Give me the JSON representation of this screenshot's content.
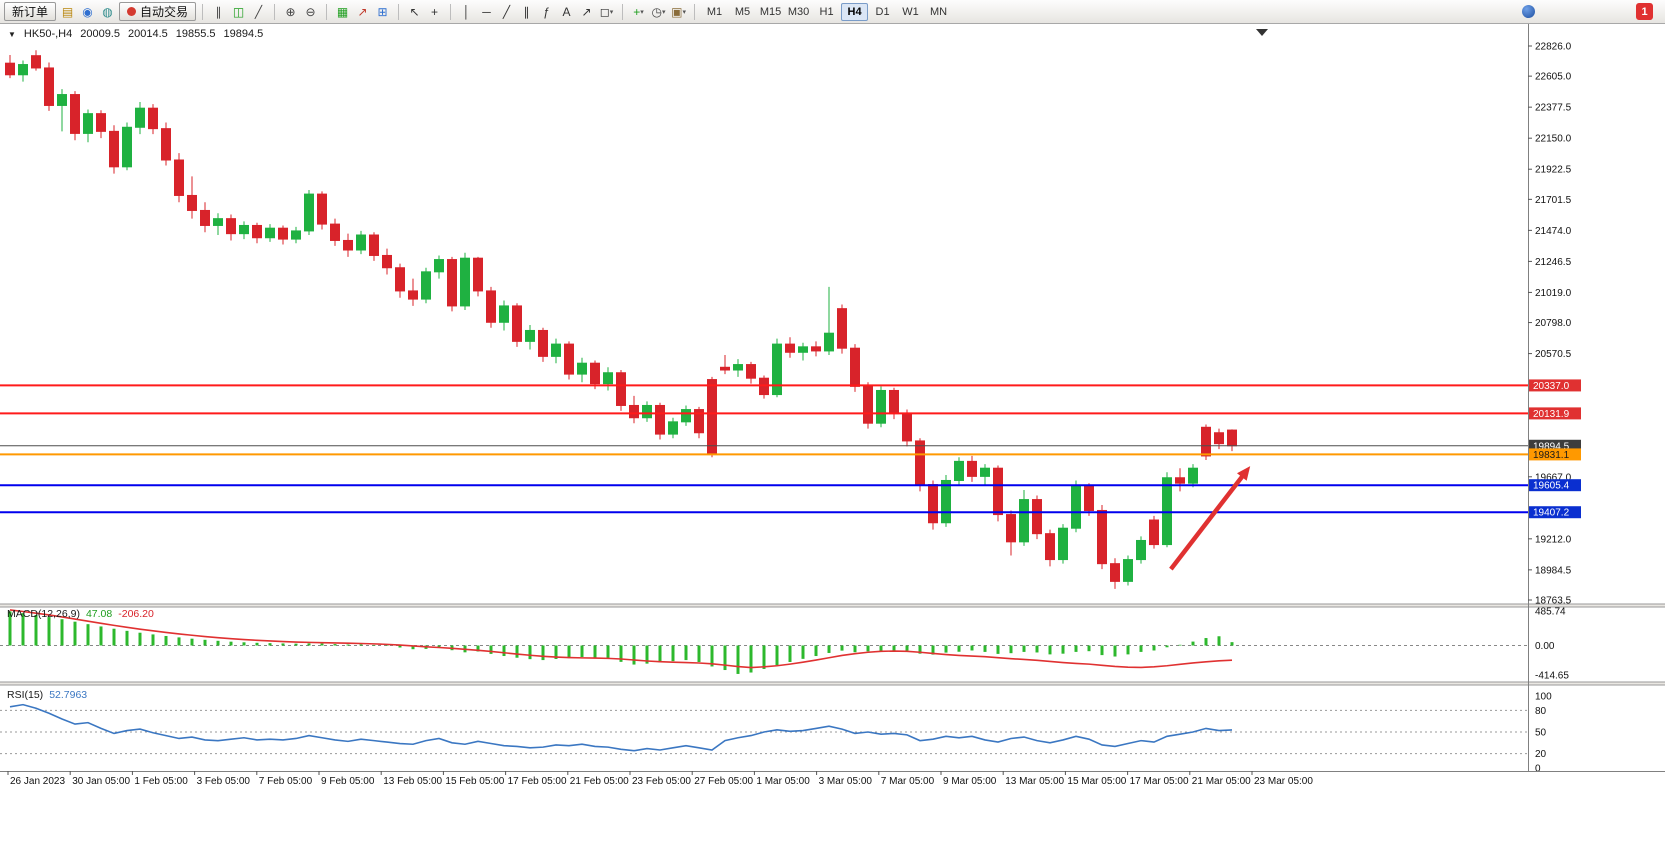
{
  "toolbar": {
    "buttons": [
      {
        "name": "new-order",
        "label": "新订单"
      },
      {
        "name": "auto-trading",
        "label": "自动交易"
      }
    ],
    "timeframes": [
      "M1",
      "M5",
      "M15",
      "M30",
      "H1",
      "H4",
      "D1",
      "W1",
      "MN"
    ],
    "active_timeframe": "H4",
    "notification_count": "1",
    "icon_groups": {
      "g1": [
        {
          "name": "market-watch-icon",
          "glyph": "▤",
          "color": "#b8860b"
        },
        {
          "name": "profile-icon",
          "glyph": "◉",
          "color": "#2f6fd0"
        },
        {
          "name": "community-icon",
          "glyph": "◍",
          "color": "#2e8b8b"
        }
      ],
      "chart_types": [
        {
          "name": "bar-chart-icon",
          "glyph": "∥",
          "color": "#444444"
        },
        {
          "name": "candle-chart-icon",
          "glyph": "◫",
          "color": "#1e9e1e"
        },
        {
          "name": "line-chart-icon",
          "glyph": "╱",
          "color": "#444444"
        }
      ],
      "zoom": [
        {
          "name": "zoom-in-icon",
          "glyph": "⊕",
          "color": "#444444"
        },
        {
          "name": "zoom-out-icon",
          "glyph": "⊖",
          "color": "#444444"
        }
      ],
      "windows": [
        {
          "name": "grid-icon",
          "glyph": "▦",
          "color": "#1e9e1e"
        },
        {
          "name": "indicators-window-icon",
          "glyph": "↗",
          "color": "#c0392b"
        },
        {
          "name": "tile-windows-icon",
          "glyph": "⊞",
          "color": "#2f6fd0"
        }
      ],
      "cursor": [
        {
          "name": "cursor-icon",
          "glyph": "↖",
          "color": "#333333"
        },
        {
          "name": "crosshair-icon",
          "glyph": "+",
          "color": "#333333"
        }
      ],
      "draw": [
        {
          "name": "vertical-line-icon",
          "glyph": "│",
          "color": "#333333"
        },
        {
          "name": "horizontal-line-icon",
          "glyph": "─",
          "color": "#333333"
        },
        {
          "name": "trendline-icon",
          "glyph": "╱",
          "color": "#333333"
        },
        {
          "name": "channel-icon",
          "glyph": "∥",
          "color": "#333333"
        },
        {
          "name": "fibonacci-icon",
          "glyph": "ƒ",
          "color": "#333333"
        },
        {
          "name": "text-icon",
          "glyph": "A",
          "color": "#333333"
        },
        {
          "name": "arrows-icon",
          "glyph": "↗",
          "color": "#333333"
        },
        {
          "name": "shapes-icon",
          "glyph": "◻",
          "color": "#333333",
          "caret": true
        }
      ],
      "insert": [
        {
          "name": "add-indicator-icon",
          "glyph": "+",
          "color": "#1e9e1e",
          "caret": true
        },
        {
          "name": "period-icon",
          "glyph": "◷",
          "color": "#444444",
          "caret": true
        },
        {
          "name": "template-icon",
          "glyph": "▣",
          "color": "#8a6d3b",
          "caret": true
        }
      ]
    }
  },
  "chart": {
    "header": {
      "symbol": "HK50-,H4",
      "open": "20009.5",
      "high": "20014.5",
      "low": "19855.5",
      "close": "19894.5"
    },
    "macd_label": {
      "name": "MACD(12,26,9)",
      "main": "47.08",
      "signal": "-206.20"
    },
    "rsi_label": {
      "name": "RSI(15)",
      "value": "52.7963"
    }
  },
  "chart_data": {
    "type": "candlestick",
    "symbol": "HK50-",
    "timeframe": "H4",
    "ylim": [
      18763.5,
      22826.0
    ],
    "price_ticks": [
      22826.0,
      22605.0,
      22377.5,
      22150.0,
      21922.5,
      21701.5,
      21474.0,
      21246.5,
      21019.0,
      20798.0,
      20570.5,
      19667.0,
      19212.0,
      18984.5,
      18763.5
    ],
    "hlines": [
      {
        "price": 20337.0,
        "color": "#ff1a1a",
        "width": 2,
        "box": "#e03131",
        "text": "#ffffff"
      },
      {
        "price": 20131.9,
        "color": "#ff1a1a",
        "width": 2,
        "box": "#e03131",
        "text": "#ffffff"
      },
      {
        "price": 19894.5,
        "color": "#4d4d4d",
        "width": 1,
        "box": "#3d3d3d",
        "text": "#ffffff"
      },
      {
        "price": 19831.1,
        "color": "#ff9900",
        "width": 2,
        "box": "#ff9900",
        "text": "#1a1a1a"
      },
      {
        "price": 19605.4,
        "color": "#0000ee",
        "width": 2,
        "box": "#0a2fd0",
        "text": "#ffffff"
      },
      {
        "price": 19407.2,
        "color": "#0000ee",
        "width": 2,
        "box": "#0a2fd0",
        "text": "#ffffff"
      }
    ],
    "candles": [
      [
        22700,
        22760,
        22590,
        22615
      ],
      [
        22615,
        22720,
        22565,
        22690
      ],
      [
        22755,
        22795,
        22645,
        22665
      ],
      [
        22665,
        22705,
        22350,
        22390
      ],
      [
        22390,
        22510,
        22200,
        22470
      ],
      [
        22470,
        22495,
        22135,
        22185
      ],
      [
        22185,
        22360,
        22120,
        22330
      ],
      [
        22330,
        22355,
        22150,
        22200
      ],
      [
        22200,
        22245,
        21890,
        21940
      ],
      [
        21940,
        22265,
        21915,
        22230
      ],
      [
        22230,
        22415,
        22180,
        22370
      ],
      [
        22370,
        22400,
        22180,
        22220
      ],
      [
        22220,
        22265,
        21950,
        21990
      ],
      [
        21990,
        22040,
        21680,
        21730
      ],
      [
        21730,
        21870,
        21560,
        21620
      ],
      [
        21620,
        21680,
        21460,
        21510
      ],
      [
        21510,
        21600,
        21440,
        21560
      ],
      [
        21560,
        21590,
        21400,
        21450
      ],
      [
        21450,
        21540,
        21410,
        21510
      ],
      [
        21510,
        21530,
        21380,
        21420
      ],
      [
        21420,
        21520,
        21390,
        21490
      ],
      [
        21490,
        21510,
        21370,
        21410
      ],
      [
        21410,
        21500,
        21380,
        21470
      ],
      [
        21470,
        21770,
        21440,
        21740
      ],
      [
        21740,
        21760,
        21480,
        21520
      ],
      [
        21520,
        21560,
        21360,
        21400
      ],
      [
        21400,
        21450,
        21280,
        21330
      ],
      [
        21330,
        21470,
        21300,
        21440
      ],
      [
        21440,
        21460,
        21250,
        21290
      ],
      [
        21290,
        21340,
        21150,
        21200
      ],
      [
        21200,
        21230,
        20980,
        21030
      ],
      [
        21030,
        21120,
        20920,
        20970
      ],
      [
        20970,
        21200,
        20940,
        21170
      ],
      [
        21170,
        21290,
        21120,
        21260
      ],
      [
        21260,
        21280,
        20880,
        20920
      ],
      [
        20920,
        21310,
        20890,
        21270
      ],
      [
        21270,
        21280,
        20990,
        21030
      ],
      [
        21030,
        21060,
        20760,
        20800
      ],
      [
        20800,
        20960,
        20740,
        20920
      ],
      [
        20920,
        20940,
        20620,
        20660
      ],
      [
        20660,
        20780,
        20600,
        20740
      ],
      [
        20740,
        20760,
        20510,
        20550
      ],
      [
        20550,
        20680,
        20500,
        20640
      ],
      [
        20640,
        20660,
        20380,
        20420
      ],
      [
        20420,
        20540,
        20360,
        20500
      ],
      [
        20500,
        20520,
        20310,
        20350
      ],
      [
        20350,
        20470,
        20300,
        20430
      ],
      [
        20430,
        20450,
        20150,
        20190
      ],
      [
        20190,
        20260,
        20060,
        20100
      ],
      [
        20100,
        20220,
        20070,
        20190
      ],
      [
        20190,
        20210,
        19940,
        19980
      ],
      [
        19980,
        20100,
        19950,
        20070
      ],
      [
        20070,
        20190,
        20040,
        20160
      ],
      [
        20160,
        20180,
        19950,
        19990
      ],
      [
        20380,
        20400,
        19810,
        19840
      ],
      [
        20470,
        20560,
        20420,
        20450
      ],
      [
        20450,
        20530,
        20400,
        20490
      ],
      [
        20490,
        20510,
        20350,
        20390
      ],
      [
        20390,
        20410,
        20240,
        20270
      ],
      [
        20270,
        20680,
        20250,
        20640
      ],
      [
        20640,
        20690,
        20540,
        20580
      ],
      [
        20580,
        20650,
        20520,
        20620
      ],
      [
        20620,
        20660,
        20550,
        20590
      ],
      [
        20590,
        21060,
        20560,
        20720
      ],
      [
        20900,
        20930,
        20570,
        20610
      ],
      [
        20610,
        20640,
        20290,
        20330
      ],
      [
        20330,
        20360,
        20020,
        20060
      ],
      [
        20060,
        20330,
        20030,
        20300
      ],
      [
        20300,
        20320,
        20090,
        20130
      ],
      [
        20130,
        20160,
        19890,
        19930
      ],
      [
        19930,
        19950,
        19560,
        19610
      ],
      [
        19610,
        19640,
        19280,
        19330
      ],
      [
        19330,
        19680,
        19300,
        19640
      ],
      [
        19640,
        19810,
        19610,
        19780
      ],
      [
        19780,
        19820,
        19630,
        19670
      ],
      [
        19670,
        19760,
        19610,
        19730
      ],
      [
        19730,
        19750,
        19340,
        19390
      ],
      [
        19390,
        19420,
        19090,
        19190
      ],
      [
        19190,
        19570,
        19160,
        19500
      ],
      [
        19500,
        19530,
        19210,
        19250
      ],
      [
        19250,
        19280,
        19010,
        19060
      ],
      [
        19060,
        19320,
        19030,
        19290
      ],
      [
        19290,
        19640,
        19260,
        19600
      ],
      [
        19600,
        19620,
        19380,
        19420
      ],
      [
        19420,
        19460,
        18990,
        19030
      ],
      [
        19030,
        19070,
        18845,
        18900
      ],
      [
        18900,
        19090,
        18870,
        19060
      ],
      [
        19060,
        19230,
        19030,
        19200
      ],
      [
        19350,
        19380,
        19140,
        19170
      ],
      [
        19170,
        19700,
        19150,
        19660
      ],
      [
        19660,
        19730,
        19560,
        19620
      ],
      [
        19620,
        19760,
        19590,
        19730
      ],
      [
        20030,
        20050,
        19790,
        19820
      ],
      [
        19990,
        20020,
        19870,
        19910
      ],
      [
        20009.5,
        20014.5,
        19855.5,
        19894.5
      ]
    ],
    "arrow": {
      "from_index": 89.3,
      "from_price": 18990,
      "to_index": 95.4,
      "to_price": 19745,
      "color": "#e03131"
    },
    "macd": {
      "params": "12,26,9",
      "scale": [
        {
          "value": 485.74,
          "label": "485.74"
        },
        {
          "value": 0,
          "label": "0.00"
        },
        {
          "value": -414.65,
          "label": "-414.65"
        }
      ],
      "histogram": [
        480,
        455,
        430,
        400,
        370,
        335,
        300,
        268,
        236,
        206,
        180,
        156,
        134,
        114,
        96,
        80,
        66,
        54,
        45,
        38,
        33,
        29,
        26,
        30,
        27,
        20,
        14,
        16,
        8,
        -6,
        -28,
        -52,
        -48,
        -34,
        -66,
        -96,
        -84,
        -118,
        -148,
        -172,
        -192,
        -205,
        -190,
        -178,
        -162,
        -170,
        -188,
        -230,
        -268,
        -255,
        -238,
        -220,
        -205,
        -232,
        -295,
        -345,
        -400,
        -380,
        -330,
        -278,
        -232,
        -188,
        -148,
        -105,
        -72,
        -95,
        -82,
        -90,
        -80,
        -72,
        -115,
        -128,
        -100,
        -88,
        -70,
        -90,
        -118,
        -108,
        -90,
        -98,
        -125,
        -115,
        -90,
        -80,
        -135,
        -155,
        -125,
        -90,
        -70,
        -25,
        10,
        55,
        105,
        130,
        47.08
      ],
      "signal": [
        500,
        478,
        455,
        430,
        402,
        372,
        342,
        312,
        283,
        256,
        230,
        206,
        184,
        163,
        144,
        126,
        110,
        96,
        84,
        73,
        64,
        56,
        49,
        44,
        40,
        36,
        32,
        28,
        23,
        16,
        6,
        -6,
        -18,
        -28,
        -40,
        -54,
        -68,
        -84,
        -102,
        -120,
        -137,
        -152,
        -163,
        -170,
        -174,
        -177,
        -181,
        -190,
        -204,
        -218,
        -228,
        -235,
        -240,
        -246,
        -258,
        -276,
        -296,
        -310,
        -300,
        -285,
        -262,
        -235,
        -205,
        -172,
        -140,
        -115,
        -95,
        -82,
        -78,
        -82,
        -95,
        -112,
        -128,
        -140,
        -148,
        -158,
        -172,
        -185,
        -196,
        -208,
        -224,
        -240,
        -252,
        -262,
        -278,
        -295,
        -305,
        -308,
        -300,
        -285,
        -265,
        -245,
        -230,
        -215,
        -206.2
      ]
    },
    "rsi": {
      "period": 15,
      "levels": [
        100,
        80,
        50,
        20,
        0
      ],
      "dashed_levels": [
        80,
        50,
        20
      ],
      "values": [
        85,
        88,
        83,
        76,
        68,
        61,
        63,
        55,
        48,
        52,
        54,
        49,
        45,
        41,
        43,
        39,
        38,
        40,
        42,
        39,
        40,
        39,
        41,
        45,
        42,
        39,
        37,
        40,
        38,
        36,
        34,
        33,
        38,
        41,
        35,
        33,
        37,
        34,
        31,
        30,
        28,
        29,
        32,
        31,
        33,
        30,
        29,
        26,
        24,
        27,
        25,
        28,
        31,
        28,
        25,
        38,
        42,
        45,
        50,
        53,
        51,
        52,
        55,
        58,
        54,
        48,
        50,
        47,
        48,
        46,
        38,
        40,
        44,
        42,
        44,
        39,
        36,
        41,
        43,
        38,
        35,
        39,
        44,
        40,
        32,
        30,
        34,
        38,
        36,
        44,
        47,
        50,
        55,
        52,
        52.8
      ]
    },
    "time_labels": [
      "26 Jan 2023",
      "30 Jan 05:00",
      "1 Feb 05:00",
      "3 Feb 05:00",
      "7 Feb 05:00",
      "9 Feb 05:00",
      "13 Feb 05:00",
      "15 Feb 05:00",
      "17 Feb 05:00",
      "21 Feb 05:00",
      "23 Feb 05:00",
      "27 Feb 05:00",
      "1 Mar 05:00",
      "3 Mar 05:00",
      "7 Mar 05:00",
      "9 Mar 05:00",
      "13 Mar 05:00",
      "15 Mar 05:00",
      "17 Mar 05:00",
      "21 Mar 05:00",
      "23 Mar 05:00"
    ],
    "colors": {
      "up": "#1fb141",
      "down": "#d8232a",
      "macd_hist": "#2db82d",
      "macd_signal": "#e03131",
      "rsi_line": "#3b77c2",
      "axis_text": "#111111"
    }
  }
}
